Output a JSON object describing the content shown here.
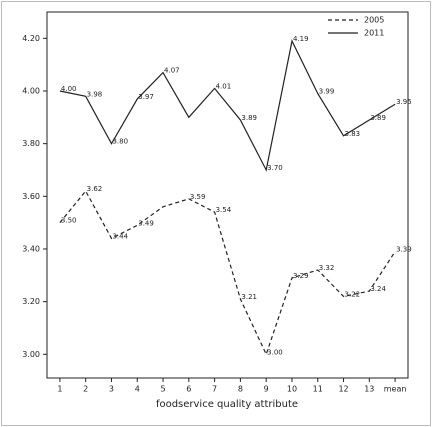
{
  "chart_data": {
    "type": "line",
    "categories": [
      "1",
      "2",
      "3",
      "4",
      "5",
      "6",
      "7",
      "8",
      "9",
      "10",
      "11",
      "12",
      "13",
      "mean"
    ],
    "x_label": "foodservice quality attribute",
    "series": [
      {
        "name": "2005",
        "color": "#222222",
        "dash": "4,3",
        "values": [
          3.5,
          3.62,
          3.44,
          3.49,
          3.56,
          3.59,
          3.54,
          3.21,
          3.0,
          3.29,
          3.32,
          3.22,
          3.24,
          3.39
        ],
        "value_labels": [
          "3.50",
          "3.62",
          "3.44",
          "3.49",
          null,
          "3.59",
          "3.54",
          "3.21",
          "3.00",
          "3.29",
          "3.32",
          "3.22",
          "3.24",
          "3.39"
        ]
      },
      {
        "name": "2011",
        "color": "#222222",
        "values": [
          4.0,
          3.98,
          3.8,
          3.97,
          4.07,
          3.9,
          4.01,
          3.89,
          3.7,
          4.19,
          3.99,
          3.83,
          3.89,
          3.95
        ],
        "value_labels": [
          "4.00",
          "3.98",
          "3.80",
          "3.97",
          "4.07",
          null,
          "4.01",
          "3.89",
          "3.70",
          "4.19",
          "3.99",
          "3.83",
          "3.89",
          "3.95"
        ]
      }
    ],
    "ylim": [
      2.91,
      4.3
    ],
    "yticks": [
      {
        "value": 3,
        "label": "3.00"
      },
      {
        "value": 3.2,
        "label": "3.20"
      },
      {
        "value": 3.4,
        "label": "3.40"
      },
      {
        "value": 3.6,
        "label": "3.60"
      },
      {
        "value": 3.8,
        "label": "3.80"
      },
      {
        "value": 4,
        "label": "4.00"
      },
      {
        "value": 4.2,
        "label": "4.20"
      }
    ],
    "legend": "top-right"
  }
}
